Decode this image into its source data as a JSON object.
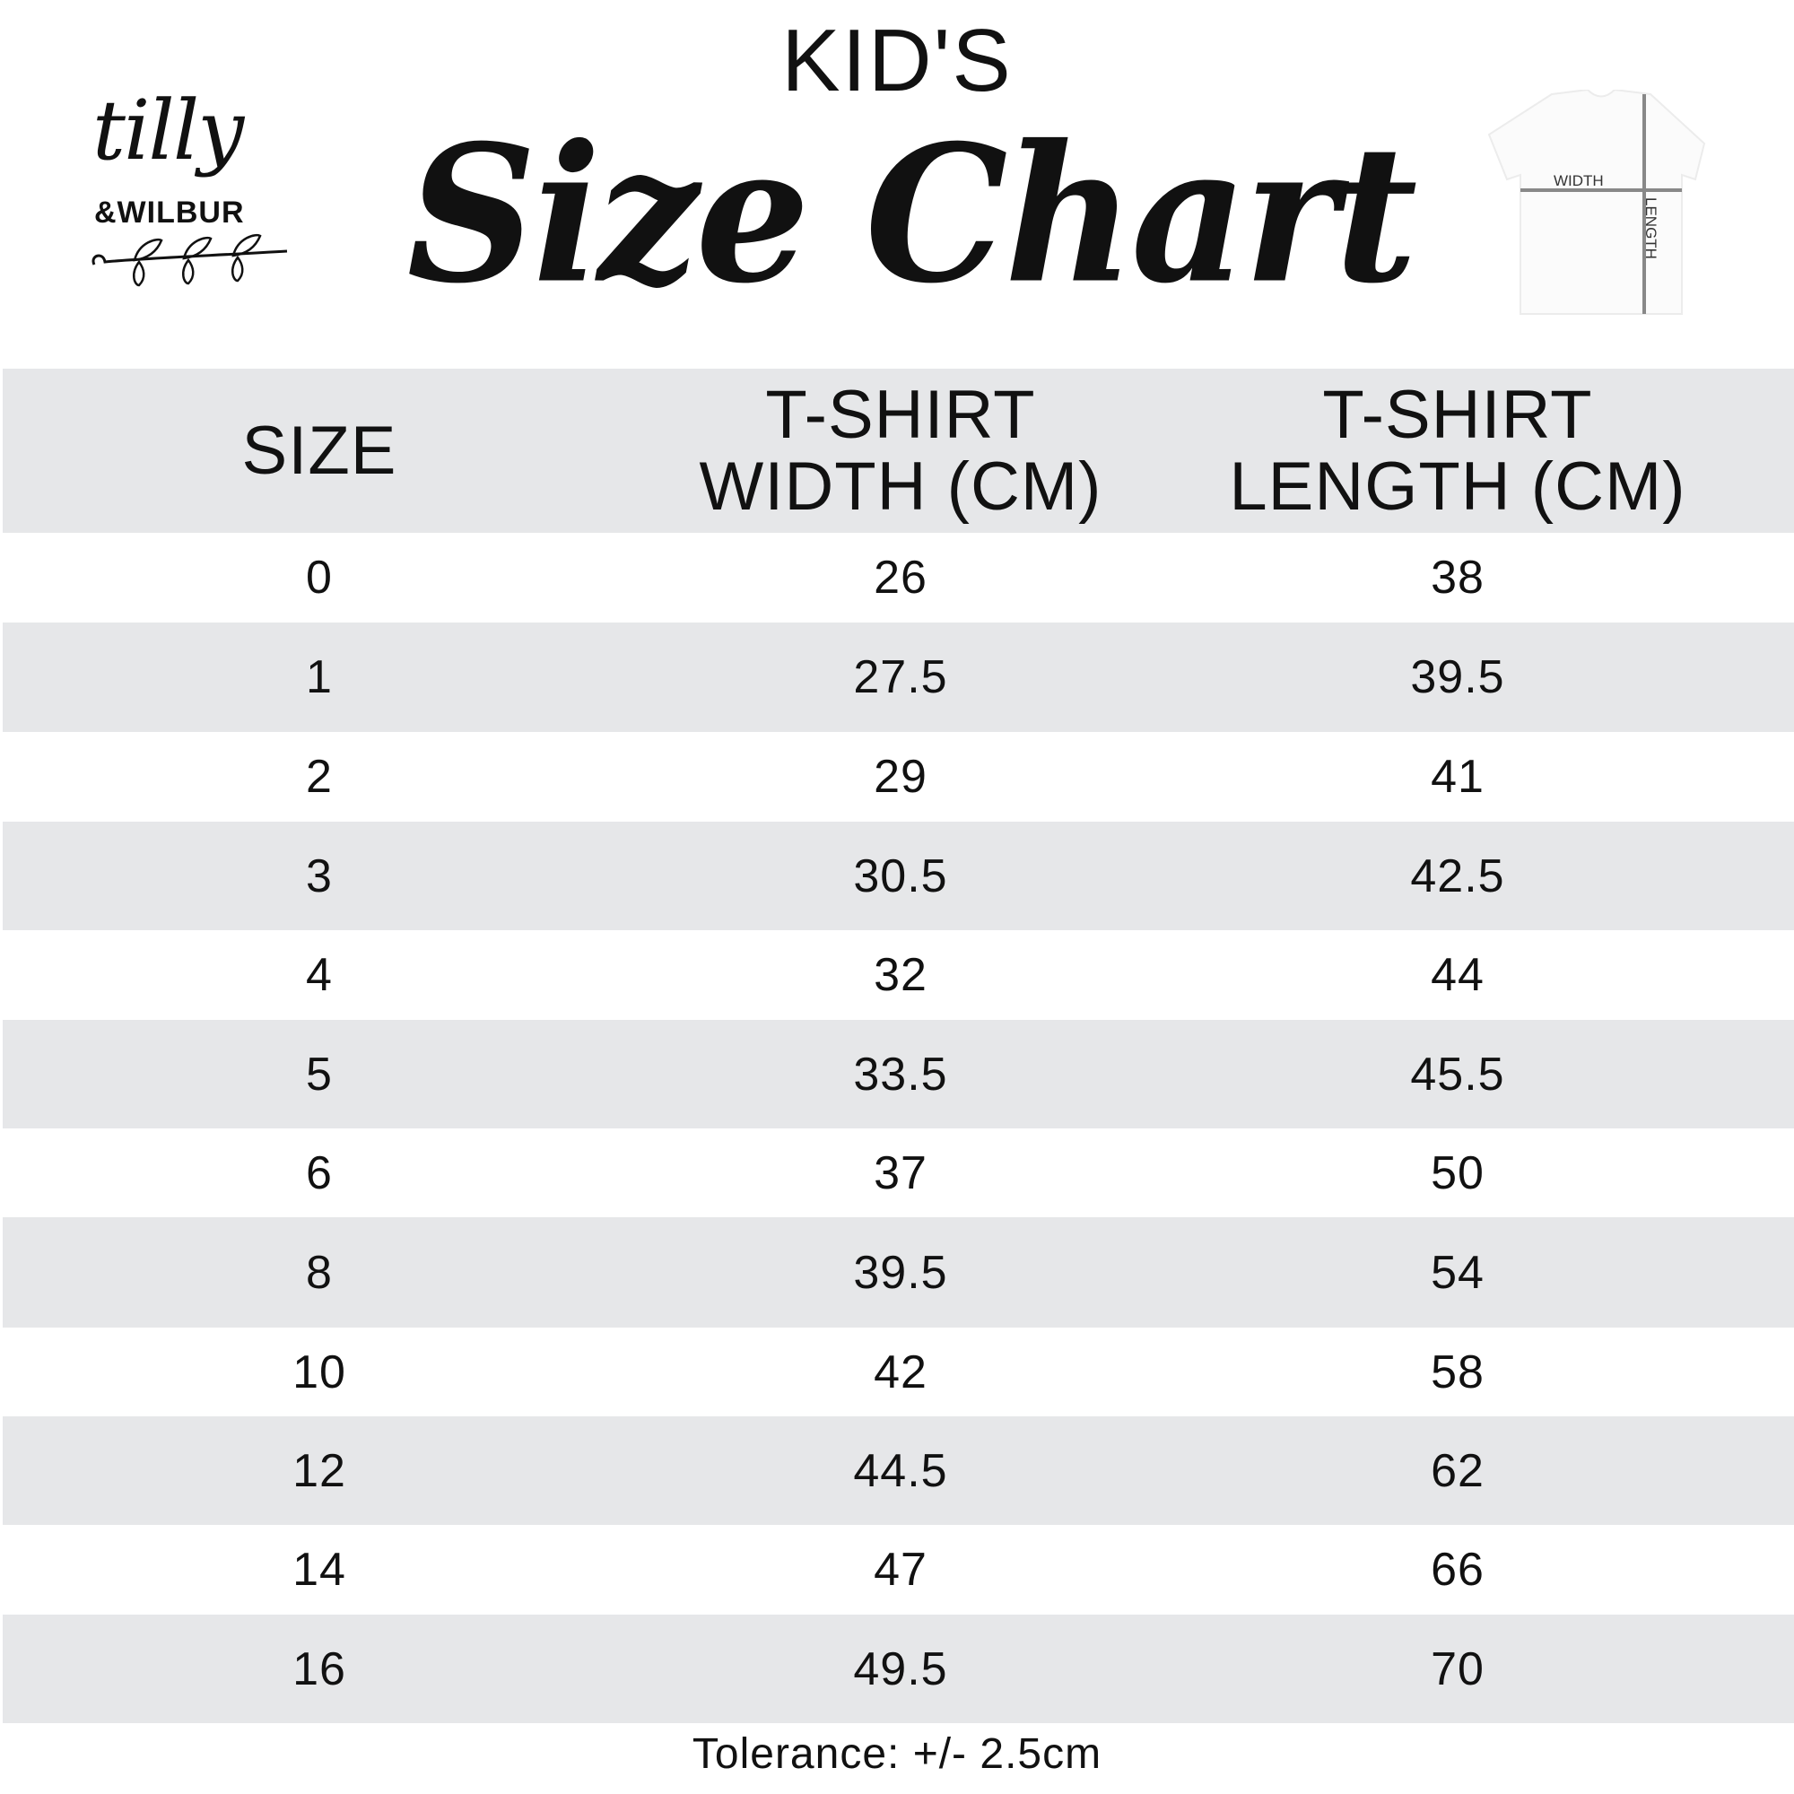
{
  "brand": {
    "logo_line1": "tilly",
    "logo_line2": "&WILBUR"
  },
  "header": {
    "kicker": "KID'S",
    "title": "Size Chart"
  },
  "diagram": {
    "width_label": "WIDTH",
    "length_label": "LENGTH"
  },
  "table": {
    "columns": [
      "SIZE",
      "T-SHIRT WIDTH (CM)",
      "T-SHIRT LENGTH (CM)"
    ],
    "column_lines": [
      [
        "SIZE"
      ],
      [
        "T-SHIRT",
        "WIDTH (CM)"
      ],
      [
        "T-SHIRT",
        "LENGTH (CM)"
      ]
    ],
    "rows": [
      [
        "0",
        "26",
        "38"
      ],
      [
        "1",
        "27.5",
        "39.5"
      ],
      [
        "2",
        "29",
        "41"
      ],
      [
        "3",
        "30.5",
        "42.5"
      ],
      [
        "4",
        "32",
        "44"
      ],
      [
        "5",
        "33.5",
        "45.5"
      ],
      [
        "6",
        "37",
        "50"
      ],
      [
        "8",
        "39.5",
        "54"
      ],
      [
        "10",
        "42",
        "58"
      ],
      [
        "12",
        "44.5",
        "62"
      ],
      [
        "14",
        "47",
        "66"
      ],
      [
        "16",
        "49.5",
        "70"
      ]
    ]
  },
  "footer": {
    "tolerance": "Tolerance: +/- 2.5cm"
  },
  "colors": {
    "band": "#e6e7e9",
    "text": "#111111"
  }
}
